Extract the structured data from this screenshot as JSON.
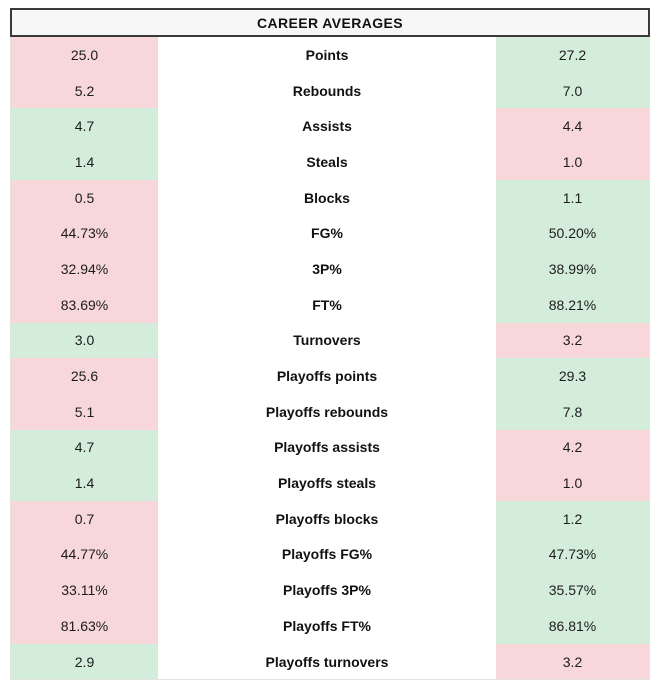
{
  "colors": {
    "win": "#d4edda",
    "lose": "#f8d7da"
  },
  "chart_data": {
    "type": "table",
    "title": "CAREER AVERAGES",
    "columns": [
      "left_player_value",
      "stat_name",
      "right_player_value"
    ],
    "legend": {
      "win_color": "#d4edda",
      "lose_color": "#f8d7da"
    },
    "rows": [
      {
        "stat": "Points",
        "left": "25.0",
        "left_state": "lose",
        "right": "27.2",
        "right_state": "win"
      },
      {
        "stat": "Rebounds",
        "left": "5.2",
        "left_state": "lose",
        "right": "7.0",
        "right_state": "win"
      },
      {
        "stat": "Assists",
        "left": "4.7",
        "left_state": "win",
        "right": "4.4",
        "right_state": "lose"
      },
      {
        "stat": "Steals",
        "left": "1.4",
        "left_state": "win",
        "right": "1.0",
        "right_state": "lose"
      },
      {
        "stat": "Blocks",
        "left": "0.5",
        "left_state": "lose",
        "right": "1.1",
        "right_state": "win"
      },
      {
        "stat": "FG%",
        "left": "44.73%",
        "left_state": "lose",
        "right": "50.20%",
        "right_state": "win"
      },
      {
        "stat": "3P%",
        "left": "32.94%",
        "left_state": "lose",
        "right": "38.99%",
        "right_state": "win"
      },
      {
        "stat": "FT%",
        "left": "83.69%",
        "left_state": "lose",
        "right": "88.21%",
        "right_state": "win"
      },
      {
        "stat": "Turnovers",
        "left": "3.0",
        "left_state": "win",
        "right": "3.2",
        "right_state": "lose"
      },
      {
        "stat": "Playoffs points",
        "left": "25.6",
        "left_state": "lose",
        "right": "29.3",
        "right_state": "win"
      },
      {
        "stat": "Playoffs rebounds",
        "left": "5.1",
        "left_state": "lose",
        "right": "7.8",
        "right_state": "win"
      },
      {
        "stat": "Playoffs assists",
        "left": "4.7",
        "left_state": "win",
        "right": "4.2",
        "right_state": "lose"
      },
      {
        "stat": "Playoffs steals",
        "left": "1.4",
        "left_state": "win",
        "right": "1.0",
        "right_state": "lose"
      },
      {
        "stat": "Playoffs blocks",
        "left": "0.7",
        "left_state": "lose",
        "right": "1.2",
        "right_state": "win"
      },
      {
        "stat": "Playoffs FG%",
        "left": "44.77%",
        "left_state": "lose",
        "right": "47.73%",
        "right_state": "win"
      },
      {
        "stat": "Playoffs 3P%",
        "left": "33.11%",
        "left_state": "lose",
        "right": "35.57%",
        "right_state": "win"
      },
      {
        "stat": "Playoffs FT%",
        "left": "81.63%",
        "left_state": "lose",
        "right": "86.81%",
        "right_state": "win"
      },
      {
        "stat": "Playoffs turnovers",
        "left": "2.9",
        "left_state": "win",
        "right": "3.2",
        "right_state": "lose"
      }
    ]
  }
}
